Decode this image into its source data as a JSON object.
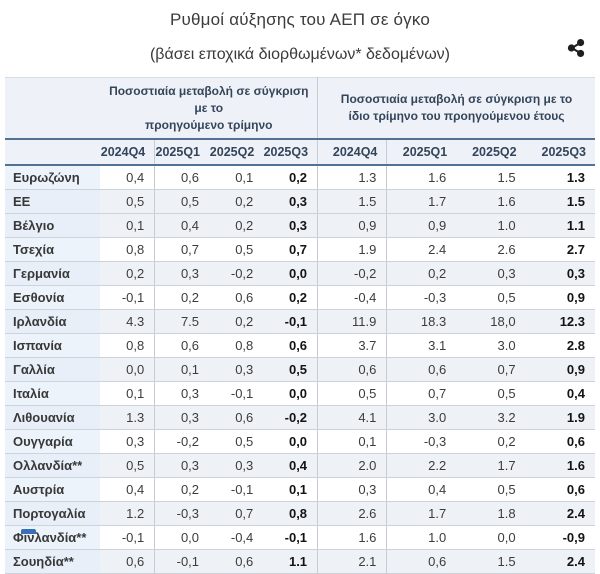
{
  "header": {
    "title": "Ρυθμοί αύξησης του ΑΕΠ σε όγκο",
    "subtitle": "(βάσει εποχικά διορθωμένων* δεδομένων)"
  },
  "icons": {
    "share": "share-icon"
  },
  "colors": {
    "header_rule": "#527193",
    "row_border": "#ccd3db",
    "header_bg": "#eef2f8",
    "label_column_bg": "#edf3fb",
    "shaded_row_bg": "#eef1f6",
    "text": "#3c3c3c",
    "bold_text": "#141414",
    "bottom_fragment_blue": "#3b6fb5"
  },
  "chart_data": {
    "type": "table",
    "title": "Ρυθμοί αύξησης του ΑΕΠ σε όγκο",
    "subtitle": "(βάσει εποχικά διορθωμένων* δεδομένων)",
    "column_groups": [
      {
        "label": "Ποσοστιαία μεταβολή σε σύγκριση με το προηγούμενο τρίμηνο",
        "label_lines": [
          "Ποσοστιαία μεταβολή σε σύγκριση με το",
          "προηγούμενο τρίμηνο"
        ],
        "quarters": [
          "2024Q4",
          "2025Q1",
          "2025Q2",
          "2025Q3"
        ]
      },
      {
        "label": "Ποσοστιαία μεταβολή σε σύγκριση με το ίδιο τρίμηνο του προηγούμενου έτους",
        "label_lines": [
          "Ποσοστιαία μεταβολή σε σύγκριση με το",
          "ίδιο τρίμηνο του προηγούμενου έτους"
        ],
        "quarters": [
          "2024Q4",
          "2025Q1",
          "2025Q2",
          "2025Q3"
        ]
      }
    ],
    "rows": [
      {
        "name": "Ευρωζώνη",
        "shaded": false,
        "qoq": [
          "0,4",
          "0,6",
          "0,1",
          "0,2"
        ],
        "yoy": [
          "1.3",
          "1.6",
          "1.5",
          "1.3"
        ]
      },
      {
        "name": "ΕΕ",
        "shaded": true,
        "qoq": [
          "0,5",
          "0,5",
          "0,2",
          "0,3"
        ],
        "yoy": [
          "1.5",
          "1.7",
          "1.6",
          "1.5"
        ]
      },
      {
        "name": "Βέλγιο",
        "shaded": true,
        "qoq": [
          "0,1",
          "0,4",
          "0,2",
          "0,3"
        ],
        "yoy": [
          "0,9",
          "0,9",
          "1.0",
          "1.1"
        ]
      },
      {
        "name": "Τσεχία",
        "shaded": false,
        "qoq": [
          "0,8",
          "0,7",
          "0,5",
          "0,7"
        ],
        "yoy": [
          "1.9",
          "2.4",
          "2.6",
          "2.7"
        ]
      },
      {
        "name": "Γερμανία",
        "shaded": true,
        "qoq": [
          "0,2",
          "0,3",
          "-0,2",
          "0,0"
        ],
        "yoy": [
          "-0,2",
          "0,2",
          "0,3",
          "0,3"
        ]
      },
      {
        "name": "Εσθονία",
        "shaded": false,
        "qoq": [
          "-0,1",
          "0,2",
          "0,6",
          "0,2"
        ],
        "yoy": [
          "-0,4",
          "-0,3",
          "0,5",
          "0,9"
        ]
      },
      {
        "name": "Ιρλανδία",
        "shaded": true,
        "qoq": [
          "4.3",
          "7.5",
          "0,2",
          "-0,1"
        ],
        "yoy": [
          "11.9",
          "18.3",
          "18,0",
          "12.3"
        ]
      },
      {
        "name": "Ισπανία",
        "shaded": false,
        "qoq": [
          "0,8",
          "0,6",
          "0,8",
          "0,6"
        ],
        "yoy": [
          "3.7",
          "3.1",
          "3.0",
          "2.8"
        ]
      },
      {
        "name": "Γαλλία",
        "shaded": true,
        "qoq": [
          "0,0",
          "0,1",
          "0,3",
          "0,5"
        ],
        "yoy": [
          "0,6",
          "0,6",
          "0,7",
          "0,9"
        ]
      },
      {
        "name": "Ιταλία",
        "shaded": false,
        "qoq": [
          "0,1",
          "0,3",
          "-0,1",
          "0,0"
        ],
        "yoy": [
          "0,5",
          "0,7",
          "0,5",
          "0,4"
        ]
      },
      {
        "name": "Λιθουανία",
        "shaded": true,
        "qoq": [
          "1.3",
          "0,3",
          "0,6",
          "-0,2"
        ],
        "yoy": [
          "4.1",
          "3.0",
          "3.2",
          "1.9"
        ]
      },
      {
        "name": "Ουγγαρία",
        "shaded": false,
        "qoq": [
          "0,3",
          "-0,2",
          "0,5",
          "0,0"
        ],
        "yoy": [
          "0,1",
          "-0,3",
          "0,2",
          "0,6"
        ]
      },
      {
        "name": "Ολλανδία**",
        "shaded": true,
        "qoq": [
          "0,5",
          "0,3",
          "0,3",
          "0,4"
        ],
        "yoy": [
          "2.0",
          "2.2",
          "1.7",
          "1.6"
        ]
      },
      {
        "name": "Αυστρία",
        "shaded": false,
        "qoq": [
          "0,4",
          "0,2",
          "-0,1",
          "0,1"
        ],
        "yoy": [
          "0,3",
          "0,4",
          "0,5",
          "0,6"
        ]
      },
      {
        "name": "Πορτογαλία",
        "shaded": true,
        "qoq": [
          "1.2",
          "-0,3",
          "0,7",
          "0,8"
        ],
        "yoy": [
          "2.6",
          "1.7",
          "1.8",
          "2.4"
        ]
      },
      {
        "name": "Φινλανδία**",
        "shaded": false,
        "qoq": [
          "-0,1",
          "0,0",
          "-0,4",
          "-0,1"
        ],
        "yoy": [
          "1.6",
          "1.0",
          "0,0",
          "-0,9"
        ]
      },
      {
        "name": "Σουηδία**",
        "shaded": true,
        "qoq": [
          "0,6",
          "-0,1",
          "0,6",
          "1.1"
        ],
        "yoy": [
          "2.1",
          "0,6",
          "1.5",
          "2.4"
        ]
      }
    ]
  }
}
